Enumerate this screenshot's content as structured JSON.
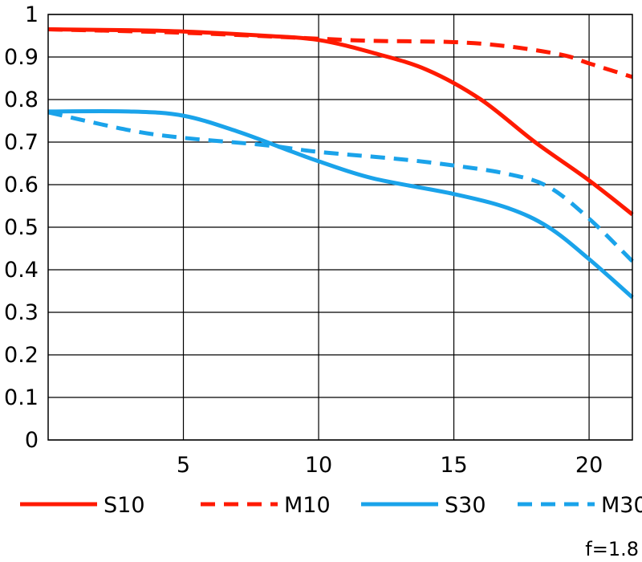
{
  "chart_data": {
    "type": "line",
    "title": "",
    "xlabel": "",
    "ylabel": "",
    "xlim": [
      0,
      21.6
    ],
    "ylim": [
      0,
      1
    ],
    "x_ticks": [
      5,
      10,
      15,
      20
    ],
    "y_ticks": [
      0,
      0.1,
      0.2,
      0.3,
      0.4,
      0.5,
      0.6,
      0.7,
      0.8,
      0.9,
      1
    ],
    "x_tick_labels": [
      "5",
      "10",
      "15",
      "20"
    ],
    "y_tick_labels": [
      "0",
      "0.1",
      "0.2",
      "0.3",
      "0.4",
      "0.5",
      "0.6",
      "0.7",
      "0.8",
      "0.9",
      "1"
    ],
    "grid": true,
    "legend_position": "bottom",
    "note": "f=1.8",
    "series": [
      {
        "name": "S10",
        "color": "#ff1a00",
        "dash": "solid",
        "points": [
          [
            0,
            0.965
          ],
          [
            3,
            0.963
          ],
          [
            5,
            0.96
          ],
          [
            8,
            0.95
          ],
          [
            10,
            0.94
          ],
          [
            12,
            0.91
          ],
          [
            14,
            0.87
          ],
          [
            16,
            0.8
          ],
          [
            18,
            0.7
          ],
          [
            20,
            0.61
          ],
          [
            21.6,
            0.53
          ]
        ]
      },
      {
        "name": "M10",
        "color": "#ff1a00",
        "dash": "dashed",
        "points": [
          [
            0,
            0.965
          ],
          [
            5,
            0.957
          ],
          [
            10,
            0.943
          ],
          [
            12,
            0.938
          ],
          [
            15,
            0.935
          ],
          [
            17,
            0.925
          ],
          [
            19,
            0.905
          ],
          [
            20,
            0.885
          ],
          [
            21.6,
            0.853
          ]
        ]
      },
      {
        "name": "S30",
        "color": "#1aa3ea",
        "dash": "solid",
        "points": [
          [
            0,
            0.772
          ],
          [
            3,
            0.772
          ],
          [
            5,
            0.762
          ],
          [
            7,
            0.725
          ],
          [
            9,
            0.678
          ],
          [
            10,
            0.655
          ],
          [
            12,
            0.615
          ],
          [
            15,
            0.578
          ],
          [
            17,
            0.545
          ],
          [
            18.5,
            0.5
          ],
          [
            20,
            0.425
          ],
          [
            21.6,
            0.335
          ]
        ]
      },
      {
        "name": "M30",
        "color": "#1aa3ea",
        "dash": "dashed",
        "points": [
          [
            0,
            0.77
          ],
          [
            3,
            0.728
          ],
          [
            5,
            0.71
          ],
          [
            8,
            0.693
          ],
          [
            10,
            0.677
          ],
          [
            13,
            0.66
          ],
          [
            15,
            0.645
          ],
          [
            17,
            0.625
          ],
          [
            18.5,
            0.595
          ],
          [
            20,
            0.52
          ],
          [
            21.6,
            0.42
          ]
        ]
      }
    ]
  }
}
